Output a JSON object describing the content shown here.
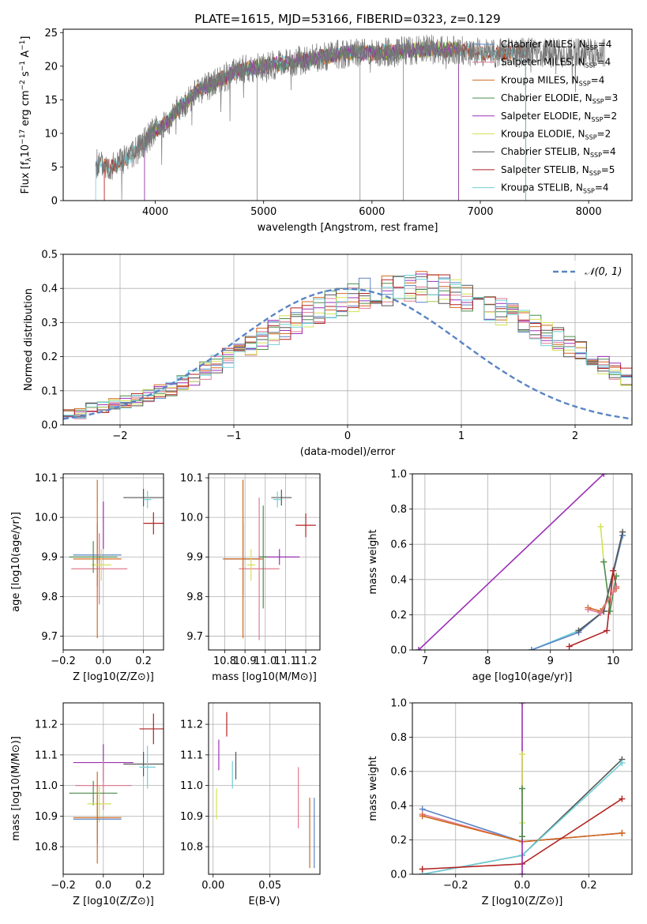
{
  "figure": {
    "title": "PLATE=1615, MJD=53166, FIBERID=0323, z=0.129"
  },
  "legend": {
    "entries": [
      {
        "text": "Chabrier MILES, N",
        "sub": "SSP",
        "tail": "=4",
        "color": "#5b84c4"
      },
      {
        "text": "Salpeter MILES, N",
        "sub": "SSP",
        "tail": "=4",
        "color": "#e07b91"
      },
      {
        "text": "Kroupa MILES, N",
        "sub": "SSP",
        "tail": "=4",
        "color": "#d2691e"
      },
      {
        "text": "Chabrier ELODIE, N",
        "sub": "SSP",
        "tail": "=3",
        "color": "#4c8c4a"
      },
      {
        "text": "Salpeter ELODIE, N",
        "sub": "SSP",
        "tail": "=2",
        "color": "#9b30b5"
      },
      {
        "text": "Kroupa ELODIE, N",
        "sub": "SSP",
        "tail": "=2",
        "color": "#d4e157"
      },
      {
        "text": "Chabrier STELIB, N",
        "sub": "SSP",
        "tail": "=4",
        "color": "#555555"
      },
      {
        "text": "Salpeter STELIB, N",
        "sub": "SSP",
        "tail": "=5",
        "color": "#b22222"
      },
      {
        "text": "Kroupa STELIB, N",
        "sub": "SSP",
        "tail": "=4",
        "color": "#6fd0d8"
      }
    ],
    "gauss_label": "𝒩(0, 1)"
  },
  "chart_data": [
    {
      "id": "spectrum",
      "type": "line",
      "xlabel": "wavelength [Angstrom, rest frame]",
      "ylabel": "Flux [f_λ 10^-17 erg cm^-2 s^-1 A^-1]",
      "xlim": [
        3150,
        8400
      ],
      "ylim": [
        0,
        25.5
      ],
      "xticks": [
        4000,
        5000,
        6000,
        7000,
        8000
      ],
      "yticks": [
        0,
        5,
        10,
        15,
        20,
        25
      ],
      "data_continuum": {
        "x": [
          3450,
          3600,
          3800,
          4000,
          4100,
          4200,
          4400,
          4600,
          4800,
          5000,
          5200,
          5400,
          5600,
          5800,
          6000,
          6200,
          6400,
          6600,
          6800,
          7000,
          7200,
          7400
        ],
        "y": [
          5.5,
          5.0,
          7.0,
          10.5,
          11.5,
          13.5,
          16.5,
          18.0,
          19.5,
          20.0,
          20.5,
          21.0,
          21.5,
          22.0,
          22.0,
          22.0,
          22.5,
          22.5,
          22.5,
          22.0,
          22.0,
          22.0
        ]
      },
      "data_xrange": [
        3450,
        8150
      ],
      "model_cutoffs": [
        {
          "color": "#d2691e",
          "lo": 3530,
          "hi": 7420
        },
        {
          "color": "#d4e157",
          "lo": 3900,
          "hi": 6800
        },
        {
          "color": "#b22222",
          "lo": 3530,
          "hi": 7420
        },
        {
          "color": "#6fd0d8",
          "lo": 3450,
          "hi": 7420
        },
        {
          "color": "#4c8c4a",
          "lo": 3900,
          "hi": 6800
        },
        {
          "color": "#9b30b5",
          "lo": 3900,
          "hi": 6800
        }
      ]
    },
    {
      "id": "residual-hist",
      "type": "line",
      "xlabel": "(data-model)/error",
      "ylabel": "Normed distribution",
      "xlim": [
        -2.5,
        2.5
      ],
      "ylim": [
        0,
        0.5
      ],
      "xticks": [
        -2,
        -1,
        0,
        1,
        2
      ],
      "xticklabels": [
        "−2",
        "−1",
        "0",
        "1",
        "2"
      ],
      "yticks": [
        0.0,
        0.1,
        0.2,
        0.3,
        0.4,
        0.5
      ],
      "yticklabels": [
        "0.0",
        "0.1",
        "0.2",
        "0.3",
        "0.4",
        "0.5"
      ],
      "bin_width": 0.1,
      "series": [
        {
          "color": "#5b84c4",
          "values": [
            0.032,
            0.035,
            0.048,
            0.054,
            0.058,
            0.068,
            0.073,
            0.084,
            0.096,
            0.108,
            0.124,
            0.141,
            0.158,
            0.176,
            0.195,
            0.213,
            0.232,
            0.252,
            0.27,
            0.288,
            0.305,
            0.322,
            0.336,
            0.351,
            0.365,
            0.375,
            0.385,
            0.393,
            0.398,
            0.401,
            0.402,
            0.401,
            0.398,
            0.392,
            0.385,
            0.375,
            0.364,
            0.351,
            0.336,
            0.322,
            0.305,
            0.288,
            0.27,
            0.252,
            0.232,
            0.213,
            0.195,
            0.176,
            0.158,
            0.141
          ]
        }
      ],
      "gauss": {
        "mu": 0,
        "sigma": 1
      }
    },
    {
      "id": "z-age",
      "type": "scatter",
      "xlabel": "Z [log10(Z/Z⊙)]",
      "ylabel": "age [log10(age/yr)]",
      "xlim": [
        -0.2,
        0.3
      ],
      "ylim": [
        9.665,
        10.11
      ],
      "xticks": [
        -0.2,
        0.0,
        0.2
      ],
      "xticklabels": [
        "−0.2",
        "0.0",
        "0.2"
      ],
      "yticks": [
        9.7,
        9.8,
        9.9,
        10.0,
        10.1
      ],
      "yticklabels": [
        "9.7",
        "9.8",
        "9.9",
        "10.0",
        "10.1"
      ]
    },
    {
      "id": "mass-age",
      "type": "scatter",
      "xlabel": "mass [log10(M/M⊙)]",
      "xlim": [
        10.72,
        11.27
      ],
      "ylim": [
        9.665,
        10.11
      ],
      "xticks": [
        10.8,
        10.9,
        11.0,
        11.1,
        11.2
      ],
      "xticklabels": [
        "10.8",
        "10.9",
        "11.0",
        "11.1",
        "11.2"
      ],
      "yticks": [
        9.7,
        9.8,
        9.9,
        10.0,
        10.1
      ],
      "yticklabels": [
        "9.7",
        "9.8",
        "9.9",
        "10.0",
        "10.1"
      ]
    },
    {
      "id": "age-weight",
      "type": "line",
      "xlabel": "age [log10(age/yr)]",
      "ylabel": "mass weight",
      "xlim": [
        6.8,
        10.3
      ],
      "ylim": [
        0,
        1.0
      ],
      "xticks": [
        7,
        8,
        9,
        10
      ],
      "xticklabels": [
        "7",
        "8",
        "9",
        "10"
      ],
      "yticks": [
        0.0,
        0.2,
        0.4,
        0.6,
        0.8,
        1.0
      ],
      "yticklabels": [
        "0.0",
        "0.2",
        "0.4",
        "0.6",
        "0.8",
        "1.0"
      ],
      "series": [
        {
          "color": "#9b30b5",
          "x": [
            6.9,
            9.85
          ],
          "y": [
            0.0,
            1.0
          ]
        },
        {
          "color": "#6fd0d8",
          "x": [
            8.7,
            9.45,
            9.85,
            10.15
          ],
          "y": [
            0.0,
            0.11,
            0.22,
            0.65
          ]
        },
        {
          "color": "#5b84c4",
          "x": [
            8.7,
            9.45,
            9.85,
            10.15
          ],
          "y": [
            0.0,
            0.1,
            0.22,
            0.65
          ]
        },
        {
          "color": "#555555",
          "x": [
            9.45,
            9.85,
            10.15
          ],
          "y": [
            0.11,
            0.22,
            0.67
          ]
        },
        {
          "color": "#b22222",
          "x": [
            9.3,
            9.9,
            10.0,
            10.05
          ],
          "y": [
            0.02,
            0.11,
            0.45,
            0.36
          ]
        },
        {
          "color": "#d4e157",
          "x": [
            9.8,
            9.85
          ],
          "y": [
            0.7,
            0.5
          ]
        },
        {
          "color": "#4c8c4a",
          "x": [
            9.85,
            9.95,
            10.05
          ],
          "y": [
            0.5,
            0.22,
            0.42
          ]
        },
        {
          "color": "#d2691e",
          "x": [
            9.6,
            9.8,
            10.0,
            10.05
          ],
          "y": [
            0.24,
            0.22,
            0.33,
            0.35
          ]
        },
        {
          "color": "#e07b91",
          "x": [
            9.6,
            9.8,
            10.0,
            10.05
          ],
          "y": [
            0.23,
            0.21,
            0.33,
            0.36
          ]
        }
      ]
    },
    {
      "id": "z-mass",
      "type": "scatter",
      "xlabel": "Z [log10(Z/Z⊙)]",
      "ylabel": "mass [log10(M/M⊙)]",
      "xlim": [
        -0.2,
        0.3
      ],
      "ylim": [
        10.71,
        11.27
      ],
      "xticks": [
        -0.2,
        0.0,
        0.2
      ],
      "xticklabels": [
        "−0.2",
        "0.0",
        "0.2"
      ],
      "yticks": [
        10.8,
        10.9,
        11.0,
        11.1,
        11.2
      ],
      "yticklabels": [
        "10.8",
        "10.9",
        "11.0",
        "11.1",
        "11.2"
      ]
    },
    {
      "id": "ebv-mass",
      "type": "scatter",
      "xlabel": "E(B-V)",
      "xlim": [
        -0.004,
        0.094
      ],
      "ylim": [
        10.71,
        11.27
      ],
      "xticks": [
        0.0,
        0.05
      ],
      "xticklabels": [
        "0.00",
        "0.05"
      ],
      "yticks": [
        10.8,
        10.9,
        11.0,
        11.1,
        11.2
      ],
      "yticklabels": [
        "10.8",
        "10.9",
        "11.0",
        "11.1",
        "11.2"
      ],
      "segments": [
        {
          "color": "#b22222",
          "x": 0.012,
          "lo": 11.16,
          "hi": 11.24
        },
        {
          "color": "#9b30b5",
          "x": 0.005,
          "lo": 11.05,
          "hi": 11.15
        },
        {
          "color": "#555555",
          "x": 0.02,
          "lo": 11.02,
          "hi": 11.11
        },
        {
          "color": "#6fd0d8",
          "x": 0.017,
          "lo": 10.99,
          "hi": 11.08
        },
        {
          "color": "#d4e157",
          "x": 0.003,
          "lo": 10.89,
          "hi": 10.99
        },
        {
          "color": "#e07b91",
          "x": 0.075,
          "lo": 10.86,
          "hi": 11.06
        },
        {
          "color": "#d2691e",
          "x": 0.085,
          "lo": 10.73,
          "hi": 10.96
        },
        {
          "color": "#5b84c4",
          "x": 0.089,
          "lo": 10.73,
          "hi": 10.96
        }
      ]
    },
    {
      "id": "z-weight",
      "type": "line",
      "xlabel": "Z [log10(Z/Z⊙)]",
      "ylabel": "mass weight",
      "xlim": [
        -0.33,
        0.33
      ],
      "ylim": [
        0,
        1.0
      ],
      "xticks": [
        -0.2,
        0.0,
        0.2
      ],
      "xticklabels": [
        "−0.2",
        "0.0",
        "0.2"
      ],
      "yticks": [
        0.0,
        0.2,
        0.4,
        0.6,
        0.8,
        1.0
      ],
      "yticklabels": [
        "0.0",
        "0.2",
        "0.4",
        "0.6",
        "0.8",
        "1.0"
      ],
      "series": [
        {
          "color": "#5b84c4",
          "x": [
            -0.3,
            0.0,
            0.3
          ],
          "y": [
            0.38,
            0.19,
            0.24
          ]
        },
        {
          "color": "#e07b91",
          "x": [
            -0.3,
            0.0,
            0.3
          ],
          "y": [
            0.35,
            0.19,
            0.24
          ]
        },
        {
          "color": "#d2691e",
          "x": [
            -0.3,
            0.0,
            0.3
          ],
          "y": [
            0.34,
            0.19,
            0.24
          ]
        },
        {
          "color": "#555555",
          "x": [
            -0.3,
            0.0,
            0.3
          ],
          "y": [
            0.0,
            0.11,
            0.67
          ]
        },
        {
          "color": "#6fd0d8",
          "x": [
            -0.3,
            0.0,
            0.3
          ],
          "y": [
            0.0,
            0.11,
            0.65
          ]
        },
        {
          "color": "#b22222",
          "x": [
            -0.3,
            0.0,
            0.3
          ],
          "y": [
            0.03,
            0.06,
            0.44
          ]
        },
        {
          "color": "#9b30b5",
          "x": [
            0.0,
            0.0
          ],
          "y": [
            0.0,
            1.0
          ]
        },
        {
          "color": "#d4e157",
          "x": [
            0.0,
            0.0
          ],
          "y": [
            0.3,
            0.7
          ]
        },
        {
          "color": "#4c8c4a",
          "x": [
            0.0,
            0.0
          ],
          "y": [
            0.22,
            0.5
          ]
        }
      ]
    }
  ],
  "crosses": {
    "zage": [
      {
        "color": "#b22222",
        "x": 0.25,
        "xe": 0.05,
        "y": 9.985,
        "ye": 0.028
      },
      {
        "color": "#555555",
        "x": 0.2,
        "xe": 0.1,
        "y": 10.05,
        "ye": 0.022
      },
      {
        "color": "#6fd0d8",
        "x": 0.22,
        "xe": 0.02,
        "y": 10.045,
        "ye": 0.022
      },
      {
        "color": "#5b84c4",
        "x": -0.03,
        "xe": 0.12,
        "y": 9.905,
        "ye": 0.08
      },
      {
        "color": "#e07b91",
        "x": -0.02,
        "xe": 0.14,
        "y": 9.87,
        "ye": 0.09
      },
      {
        "color": "#d2691e",
        "x": -0.03,
        "xe": 0.12,
        "y": 9.895,
        "ye": 0.2
      },
      {
        "color": "#9b30b5",
        "x": 0.0,
        "xe": 0.0,
        "y": 9.98,
        "ye": 0.06
      },
      {
        "color": "#d4e157",
        "x": -0.01,
        "xe": 0.05,
        "y": 9.88,
        "ye": 0.04
      },
      {
        "color": "#4c8c4a",
        "x": -0.05,
        "xe": 0.12,
        "y": 9.9,
        "ye": 0.04
      }
    ],
    "massage": [
      {
        "color": "#b22222",
        "x": 11.2,
        "xe": 0.05,
        "y": 9.98,
        "ye": 0.03
      },
      {
        "color": "#555555",
        "x": 11.08,
        "xe": 0.05,
        "y": 10.05,
        "ye": 0.02
      },
      {
        "color": "#6fd0d8",
        "x": 11.06,
        "xe": 0.02,
        "y": 10.045,
        "ye": 0.02
      },
      {
        "color": "#5b84c4",
        "x": 10.89,
        "xe": 0.09,
        "y": 9.895,
        "ye": 0.09
      },
      {
        "color": "#e07b91",
        "x": 10.97,
        "xe": 0.1,
        "y": 9.87,
        "ye": 0.18
      },
      {
        "color": "#d2691e",
        "x": 10.89,
        "xe": 0.1,
        "y": 9.895,
        "ye": 0.2
      },
      {
        "color": "#9b30b5",
        "x": 11.07,
        "xe": 0.1,
        "y": 9.9,
        "ye": 0.02
      },
      {
        "color": "#d4e157",
        "x": 10.93,
        "xe": 0.02,
        "y": 9.88,
        "ye": 0.04
      },
      {
        "color": "#4c8c4a",
        "x": 10.99,
        "xe": 0.02,
        "y": 9.9,
        "ye": 0.13
      }
    ],
    "zmass": [
      {
        "color": "#b22222",
        "x": 0.25,
        "xe": 0.07,
        "y": 11.185,
        "ye": 0.05
      },
      {
        "color": "#555555",
        "x": 0.2,
        "xe": 0.1,
        "y": 11.07,
        "ye": 0.04
      },
      {
        "color": "#6fd0d8",
        "x": 0.22,
        "xe": 0.04,
        "y": 11.06,
        "ye": 0.07
      },
      {
        "color": "#9b30b5",
        "x": 0.0,
        "xe": 0.15,
        "y": 11.075,
        "ye": 0.06
      },
      {
        "color": "#e07b91",
        "x": 0.0,
        "xe": 0.14,
        "y": 11.0,
        "ye": 0.08
      },
      {
        "color": "#4c8c4a",
        "x": -0.05,
        "xe": 0.12,
        "y": 10.975,
        "ye": 0.04
      },
      {
        "color": "#d4e157",
        "x": -0.02,
        "xe": 0.06,
        "y": 10.94,
        "ye": 0.06
      },
      {
        "color": "#5b84c4",
        "x": -0.03,
        "xe": 0.12,
        "y": 10.89,
        "ye": 0.08
      },
      {
        "color": "#d2691e",
        "x": -0.03,
        "xe": 0.12,
        "y": 10.895,
        "ye": 0.15
      }
    ]
  }
}
